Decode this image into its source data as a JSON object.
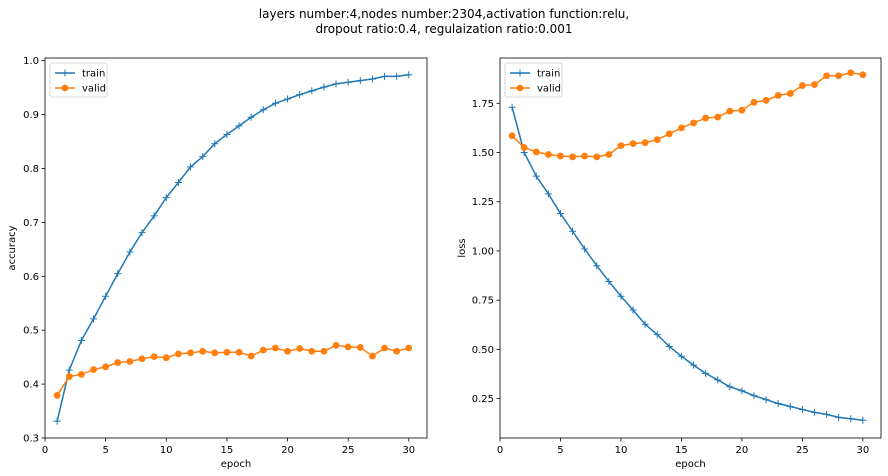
{
  "figure": {
    "title_line1": "layers number:4,nodes number:2304,activation function:relu,",
    "title_line2": "dropout ratio:0.4, regulaization ratio:0.001"
  },
  "colors": {
    "train": "#1f77b4",
    "valid": "#ff7f0e"
  },
  "chart_data": [
    {
      "type": "line",
      "xlabel": "epoch",
      "ylabel": "accuracy",
      "xlim": [
        0,
        31.5
      ],
      "ylim": [
        0.3,
        1.005
      ],
      "xticks": [
        0,
        5,
        10,
        15,
        20,
        25,
        30
      ],
      "yticks": [
        0.3,
        0.4,
        0.5,
        0.6,
        0.7,
        0.8,
        0.9,
        1.0
      ],
      "ytick_labels": [
        "0.3",
        "0.4",
        "0.5",
        "0.6",
        "0.7",
        "0.8",
        "0.9",
        "1.0"
      ],
      "legend": "upper-left",
      "grid": false,
      "x": [
        1,
        2,
        3,
        4,
        5,
        6,
        7,
        8,
        9,
        10,
        11,
        12,
        13,
        14,
        15,
        16,
        17,
        18,
        19,
        20,
        21,
        22,
        23,
        24,
        25,
        26,
        27,
        28,
        29,
        30
      ],
      "series": [
        {
          "name": "train",
          "marker": "plus",
          "values": [
            0.331,
            0.426,
            0.481,
            0.521,
            0.563,
            0.605,
            0.645,
            0.681,
            0.712,
            0.746,
            0.774,
            0.803,
            0.822,
            0.846,
            0.863,
            0.879,
            0.895,
            0.909,
            0.921,
            0.929,
            0.937,
            0.944,
            0.951,
            0.957,
            0.96,
            0.963,
            0.966,
            0.971,
            0.971,
            0.974
          ]
        },
        {
          "name": "valid",
          "marker": "circle",
          "values": [
            0.379,
            0.414,
            0.418,
            0.427,
            0.432,
            0.44,
            0.442,
            0.447,
            0.451,
            0.449,
            0.456,
            0.458,
            0.461,
            0.458,
            0.459,
            0.459,
            0.452,
            0.463,
            0.467,
            0.461,
            0.466,
            0.461,
            0.461,
            0.472,
            0.469,
            0.468,
            0.452,
            0.467,
            0.461,
            0.467
          ]
        }
      ]
    },
    {
      "type": "line",
      "xlabel": "epoch",
      "ylabel": "loss",
      "xlim": [
        0,
        31.5
      ],
      "ylim": [
        0.05,
        1.98
      ],
      "xticks": [
        0,
        5,
        10,
        15,
        20,
        25,
        30
      ],
      "yticks": [
        0.25,
        0.5,
        0.75,
        1.0,
        1.25,
        1.5,
        1.75
      ],
      "ytick_labels": [
        "0.25",
        "0.50",
        "0.75",
        "1.00",
        "1.25",
        "1.50",
        "1.75"
      ],
      "legend": "upper-left",
      "grid": false,
      "x": [
        1,
        2,
        3,
        4,
        5,
        6,
        7,
        8,
        9,
        10,
        11,
        12,
        13,
        14,
        15,
        16,
        17,
        18,
        19,
        20,
        21,
        22,
        23,
        24,
        25,
        26,
        27,
        28,
        29,
        30
      ],
      "series": [
        {
          "name": "train",
          "marker": "plus",
          "values": [
            1.73,
            1.5,
            1.38,
            1.29,
            1.19,
            1.1,
            1.01,
            0.925,
            0.845,
            0.77,
            0.7,
            0.628,
            0.575,
            0.515,
            0.465,
            0.42,
            0.378,
            0.345,
            0.31,
            0.29,
            0.265,
            0.245,
            0.225,
            0.21,
            0.195,
            0.18,
            0.17,
            0.155,
            0.148,
            0.14
          ]
        },
        {
          "name": "valid",
          "marker": "circle",
          "values": [
            1.585,
            1.525,
            1.503,
            1.49,
            1.482,
            1.478,
            1.482,
            1.478,
            1.49,
            1.535,
            1.545,
            1.55,
            1.565,
            1.595,
            1.625,
            1.65,
            1.675,
            1.68,
            1.71,
            1.715,
            1.755,
            1.765,
            1.79,
            1.8,
            1.84,
            1.845,
            1.89,
            1.89,
            1.905,
            1.895
          ]
        }
      ]
    }
  ]
}
